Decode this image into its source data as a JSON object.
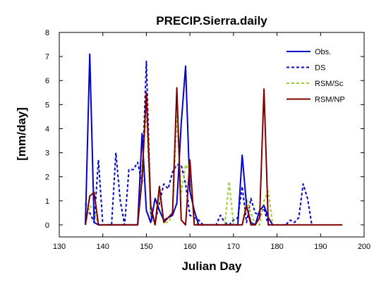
{
  "chart_data": {
    "type": "line",
    "title": "PRECIP.Sierra.daily",
    "xlabel": "Julian Day",
    "ylabel": "[mm/day]",
    "xlim": [
      130,
      200
    ],
    "ylim": [
      -0.5,
      8
    ],
    "x_ticks": [
      130,
      140,
      150,
      160,
      170,
      180,
      190,
      200
    ],
    "y_ticks": [
      0,
      1,
      2,
      3,
      4,
      5,
      6,
      7,
      8
    ],
    "grid": false,
    "legend_position": "top-right",
    "series": [
      {
        "name": "Obs.",
        "color": "#0000cc",
        "style": "solid",
        "x": [
          136,
          137,
          138,
          139,
          140,
          148,
          149,
          150,
          151,
          152,
          153,
          154,
          155,
          156,
          157,
          158,
          159,
          160,
          161,
          162,
          168,
          169,
          170,
          171,
          172,
          173,
          174,
          175,
          176,
          177,
          178,
          179
        ],
        "y": [
          0,
          7.1,
          0.1,
          0,
          0,
          0,
          3.8,
          0.6,
          0.1,
          1.1,
          0.6,
          0.2,
          0.3,
          0.4,
          0.9,
          4.2,
          6.6,
          1.4,
          0.6,
          0,
          0,
          0,
          0,
          0,
          2.9,
          0.8,
          0.1,
          0,
          0.6,
          0.8,
          0.3,
          0
        ]
      },
      {
        "name": "DS",
        "color": "#0000cc",
        "style": "dashed",
        "x": [
          136,
          137,
          138,
          139,
          140,
          142,
          143,
          144,
          145,
          146,
          147,
          148,
          149,
          150,
          151,
          152,
          153,
          154,
          155,
          156,
          157,
          158,
          159,
          160,
          161,
          162,
          163,
          166,
          167,
          168,
          169,
          170,
          171,
          172,
          173,
          174,
          175,
          176,
          177,
          178,
          179,
          182,
          183,
          184,
          185,
          186,
          187,
          188
        ],
        "y": [
          0.9,
          0.5,
          0.1,
          2.7,
          0,
          0,
          3.0,
          1.0,
          0,
          2.3,
          2.3,
          2.6,
          1.7,
          6.8,
          0.5,
          0.1,
          0.9,
          1.7,
          1.5,
          2.2,
          2.5,
          2.5,
          1.7,
          0.4,
          0.3,
          0.2,
          0,
          0,
          0.4,
          0.1,
          0,
          0.2,
          0.3,
          1.6,
          0.1,
          1.1,
          0.5,
          0.4,
          0.7,
          0,
          0,
          0,
          0.2,
          0.1,
          0.3,
          1.7,
          1.1,
          0
        ]
      },
      {
        "name": "RSM/Sc",
        "color": "#99cc33",
        "style": "dashed",
        "x": [
          136,
          137,
          138,
          139,
          148,
          149,
          150,
          151,
          152,
          153,
          154,
          155,
          156,
          157,
          158,
          159,
          160,
          161,
          162,
          163,
          167,
          168,
          169,
          170,
          171,
          172,
          173,
          174,
          175,
          176,
          177,
          178,
          179
        ],
        "y": [
          0,
          0.8,
          0.6,
          0,
          0,
          2.4,
          4.8,
          0.3,
          0,
          1.3,
          0.1,
          0.1,
          0.4,
          4.6,
          1.3,
          2.5,
          2.2,
          0.2,
          0,
          0,
          0,
          0,
          1.8,
          0,
          0,
          0,
          1.1,
          0.5,
          0,
          0,
          1.0,
          1.4,
          0
        ]
      },
      {
        "name": "RSM/NP",
        "color": "#800000",
        "style": "solid",
        "x": [
          136,
          137,
          138,
          139,
          140,
          141,
          142,
          143,
          144,
          145,
          146,
          147,
          148,
          149,
          150,
          151,
          152,
          153,
          154,
          155,
          156,
          157,
          158,
          159,
          160,
          161,
          162,
          163,
          164,
          165,
          166,
          167,
          168,
          169,
          170,
          171,
          172,
          173,
          174,
          175,
          176,
          177,
          178,
          179,
          180,
          185,
          190,
          195
        ],
        "y": [
          0,
          1.2,
          1.35,
          0,
          0,
          0,
          0,
          0,
          0,
          0,
          0,
          0,
          0,
          1.9,
          5.5,
          0.8,
          0,
          1.6,
          0.1,
          0.3,
          0.5,
          5.7,
          0.2,
          0,
          2.7,
          0,
          0,
          0,
          0,
          0,
          0,
          0,
          0,
          0,
          0,
          0,
          0,
          0.8,
          0,
          0,
          0.3,
          5.65,
          0,
          0,
          0,
          0,
          0,
          0
        ]
      }
    ]
  }
}
